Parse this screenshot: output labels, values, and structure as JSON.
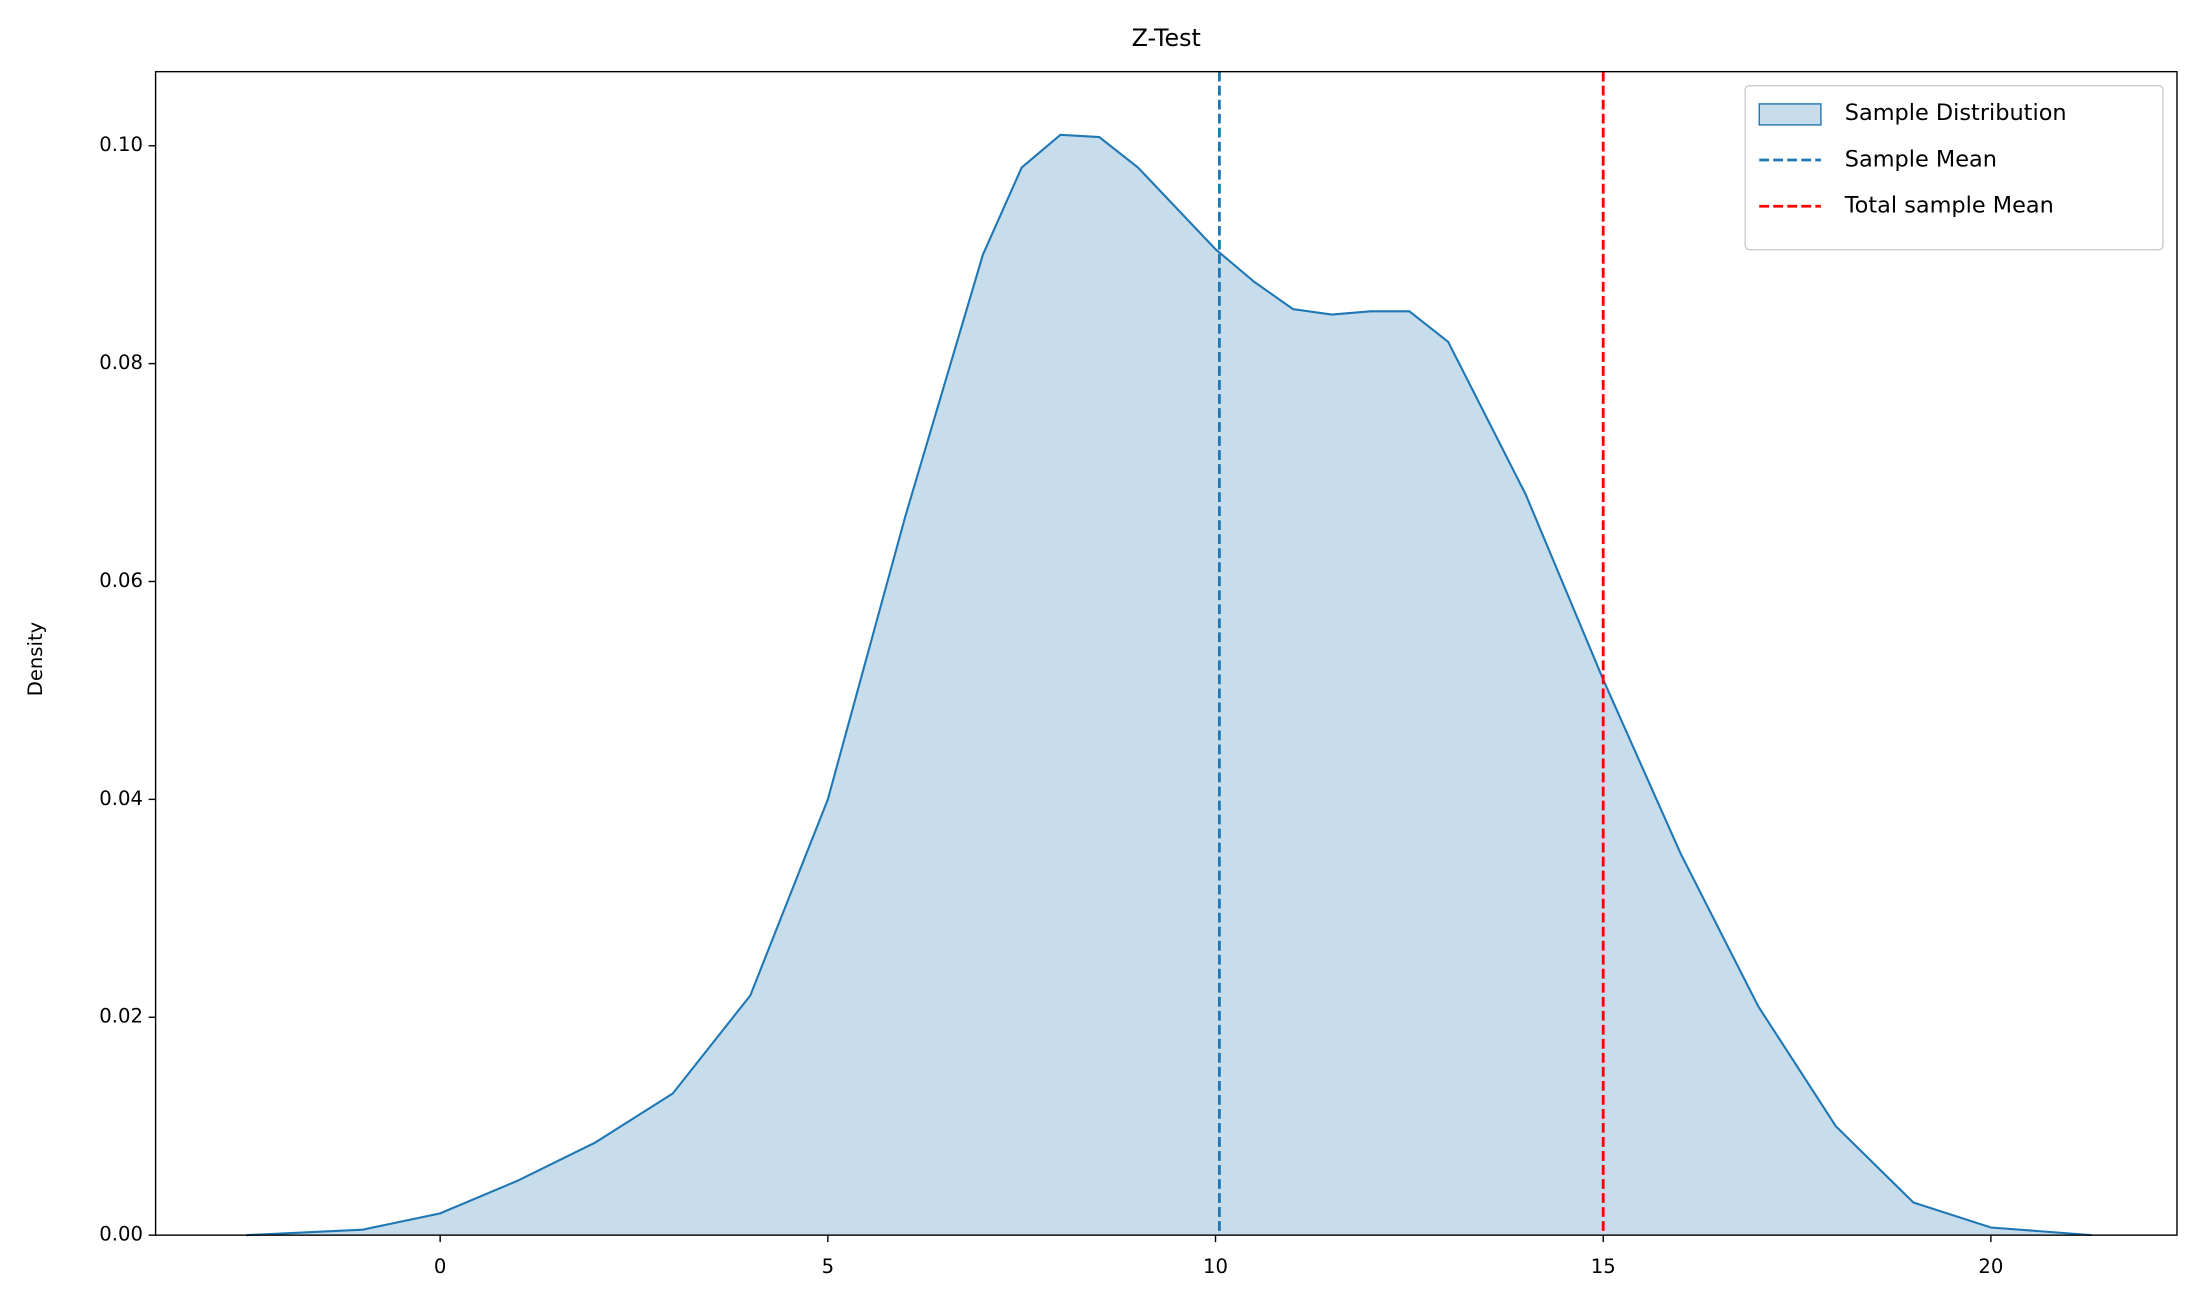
{
  "chart_data": {
    "type": "kde",
    "title": "Z-Test",
    "ylabel": "Density",
    "xlim": [
      -3.67,
      22.4
    ],
    "ylim": [
      0,
      0.1068
    ],
    "xticks": [
      0,
      5,
      10,
      15,
      20
    ],
    "yticks": [
      {
        "value": 0,
        "label": "0.00"
      },
      {
        "value": 0.02,
        "label": "0.02"
      },
      {
        "value": 0.04,
        "label": "0.04"
      },
      {
        "value": 0.06,
        "label": "0.06"
      },
      {
        "value": 0.08,
        "label": "0.08"
      },
      {
        "value": 0.1,
        "label": "0.10"
      }
    ],
    "legend": "upper right",
    "series": [
      {
        "name": "Sample Distribution",
        "color": "#1f77b4",
        "x": [
          -2.5,
          -1,
          0,
          1,
          2,
          3,
          4,
          5,
          6,
          7,
          7.5,
          8,
          8.5,
          9,
          10,
          10.5,
          11,
          11.5,
          12,
          12.5,
          13,
          14,
          15,
          16,
          17,
          18,
          19,
          20,
          21.3
        ],
        "values": [
          0,
          0.0005,
          0.002,
          0.005,
          0.0085,
          0.013,
          0.022,
          0.04,
          0.066,
          0.09,
          0.098,
          0.101,
          0.1008,
          0.098,
          0.0905,
          0.0875,
          0.085,
          0.0845,
          0.0848,
          0.0848,
          0.082,
          0.068,
          0.051,
          0.035,
          0.021,
          0.01,
          0.003,
          0.0007,
          0
        ]
      }
    ],
    "vlines": [
      {
        "name": "Sample Mean",
        "value": 10.05,
        "color": "#1f77b4"
      },
      {
        "name": "Total sample Mean",
        "value": 15,
        "color": "#ff0000"
      }
    ]
  }
}
